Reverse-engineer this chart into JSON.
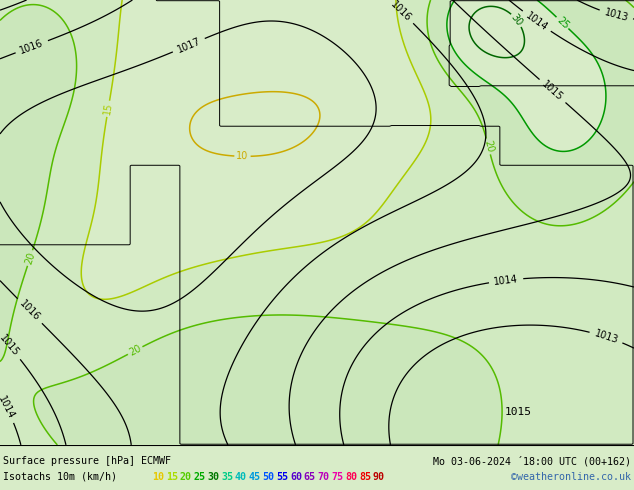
{
  "title_line1_left": "Surface pressure [hPa] ECMWF",
  "title_line1_right": "Mo 03-06-2024 ´18:00 UTC (00+162)",
  "title_line2_left": "Isotachs 10m (km/h)",
  "title_line2_right": "©weatheronline.co.uk",
  "isotach_values": [
    10,
    15,
    20,
    25,
    30,
    35,
    40,
    45,
    50,
    55,
    60,
    65,
    70,
    75,
    80,
    85,
    90
  ],
  "legend_colors": [
    "#e6c800",
    "#aadd00",
    "#55cc00",
    "#00aa00",
    "#007700",
    "#00cc88",
    "#00bbbb",
    "#0099dd",
    "#0055ff",
    "#0000ee",
    "#5500cc",
    "#8800bb",
    "#bb00bb",
    "#ee00aa",
    "#ff0055",
    "#ee0000",
    "#bb0000"
  ],
  "map_contour_colors": {
    "10": "#ccaa00",
    "15": "#aacc00",
    "20": "#55bb00",
    "25": "#009900",
    "30": "#006600",
    "35": "#00bb88",
    "40": "#009999",
    "45": "#0077cc",
    "50": "#0044ee",
    "55": "#0000cc",
    "60": "#4400aa",
    "65": "#770099",
    "70": "#aa0099",
    "75": "#dd0088",
    "80": "#ff0044",
    "85": "#dd0000",
    "90": "#aa0000"
  },
  "sea_color": "#e8eef0",
  "land_color_light": "#d8ecc8",
  "land_color_mid": "#c8e4b8",
  "bottom_bg": "#d8ecc8",
  "pressure_label": "1015",
  "figsize": [
    6.34,
    4.9
  ],
  "dpi": 100
}
